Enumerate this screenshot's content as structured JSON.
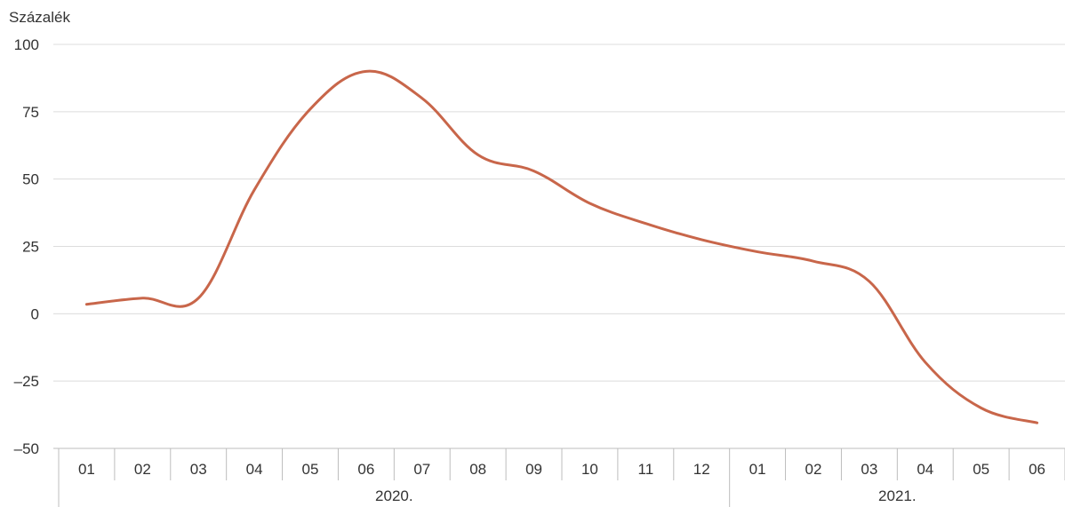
{
  "chart_data": {
    "type": "line",
    "ylabel": "Százalék",
    "ylim": [
      -50,
      100
    ],
    "yticks": [
      100,
      75,
      50,
      25,
      0,
      -25,
      -50
    ],
    "ytick_labels": [
      "100",
      "75",
      "50",
      "25",
      "0",
      "–25",
      "–50"
    ],
    "categories": [
      "01",
      "02",
      "03",
      "04",
      "05",
      "06",
      "07",
      "08",
      "09",
      "10",
      "11",
      "12",
      "01",
      "02",
      "03",
      "04",
      "05",
      "06"
    ],
    "groups": [
      {
        "label": "2020.",
        "count": 12
      },
      {
        "label": "2021.",
        "count": 6
      }
    ],
    "grid": true,
    "series": [
      {
        "color": "#c8664a",
        "values": [
          3.5,
          5.8,
          5.8,
          46,
          76,
          90,
          80,
          59,
          53,
          41,
          33.5,
          27.5,
          23,
          19.5,
          12,
          -18,
          -35,
          -40.5
        ]
      }
    ]
  }
}
